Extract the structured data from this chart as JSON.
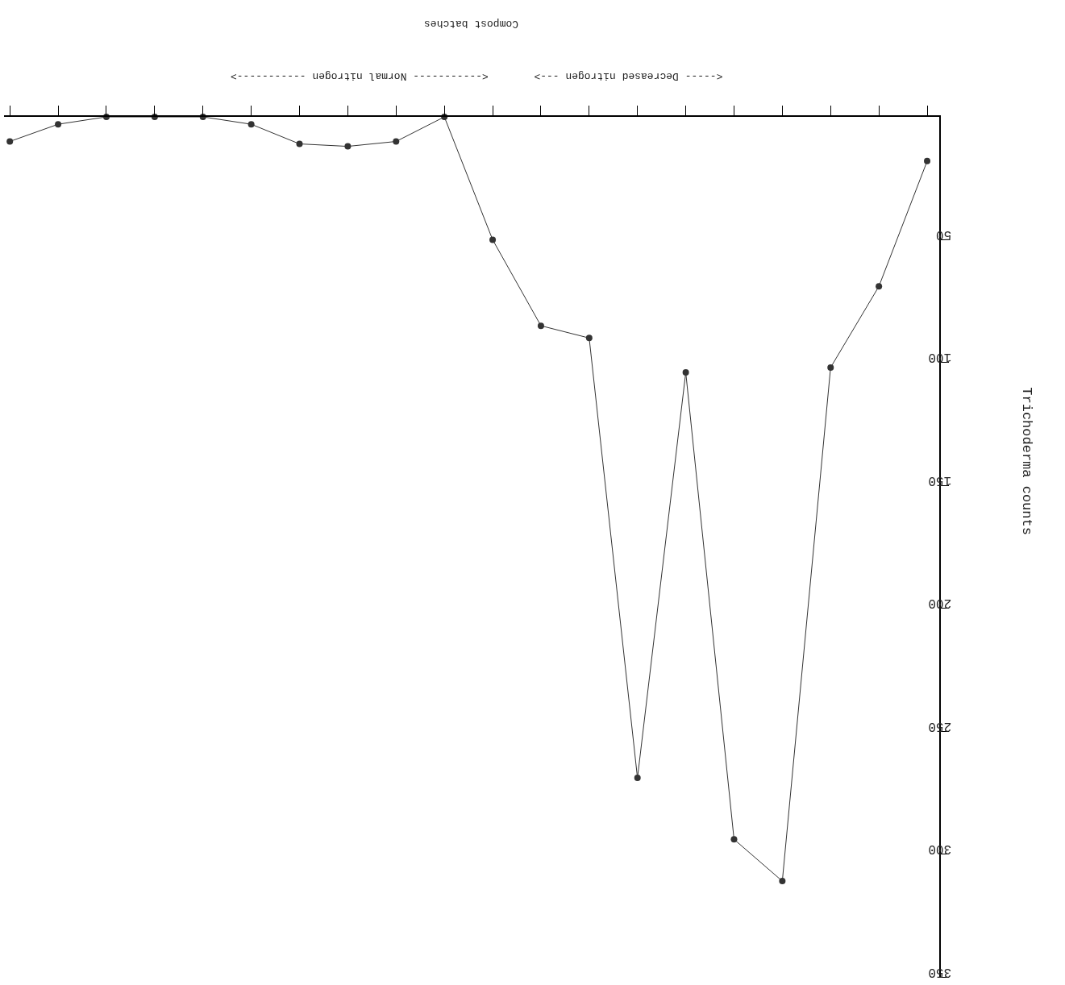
{
  "chart_data": {
    "type": "line",
    "ylabel": "Trichoderma counts",
    "categories": [
      null,
      null,
      null,
      null,
      null,
      null,
      null,
      null,
      null,
      null,
      null,
      null,
      null,
      null,
      null,
      null,
      null,
      null,
      null,
      null
    ],
    "series": [
      {
        "color": "#333333",
        "values": [
          10,
          3,
          0,
          0,
          0,
          3,
          11,
          12,
          10,
          0,
          50,
          85,
          90,
          269,
          104,
          294,
          311,
          102,
          69,
          18
        ]
      }
    ],
    "ylim": [
      350,
      0
    ],
    "yticks": [
      50,
      100,
      150,
      200,
      250,
      300,
      350
    ],
    "annotations": [
      "<----- Decreased nitrogen --->",
      "<----------- Normal nitrogen ----------->",
      "Compost batches"
    ],
    "marker": "circle",
    "line_style": "solid",
    "grid": false,
    "tick_labels": "y"
  }
}
